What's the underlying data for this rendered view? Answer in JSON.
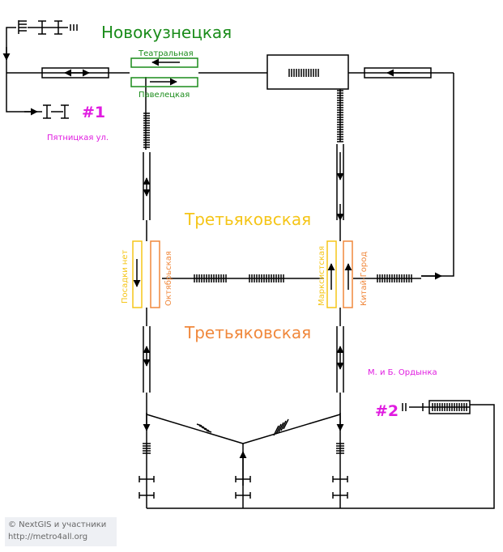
{
  "stations": {
    "novokuznetskaya": "Новокузнецкая",
    "tretyakovskaya_yellow": "Третьяковская",
    "tretyakovskaya_orange": "Третьяковская"
  },
  "platforms": {
    "teatralnaya": "Театральная",
    "paveletskaya": "Павелецкая",
    "posadki_net": "Посадки нет",
    "oktyabrskaya": "Октябрьская",
    "marksistskaya": "Марксистская",
    "kitay_gorod": "Китай-Город"
  },
  "exits": {
    "exit1_num": "#1",
    "exit1_street": "Пятницкая ул.",
    "exit2_num": "#2",
    "exit2_street": "М. и Б. Ордынка"
  },
  "credits": {
    "line1": "© NextGIS и участники",
    "line2": "http://metro4all.org"
  },
  "colors": {
    "green": "#1a8c1a",
    "yellow": "#f5c518",
    "orange": "#f0883c",
    "magenta": "#e01be0",
    "line": "#000000"
  }
}
